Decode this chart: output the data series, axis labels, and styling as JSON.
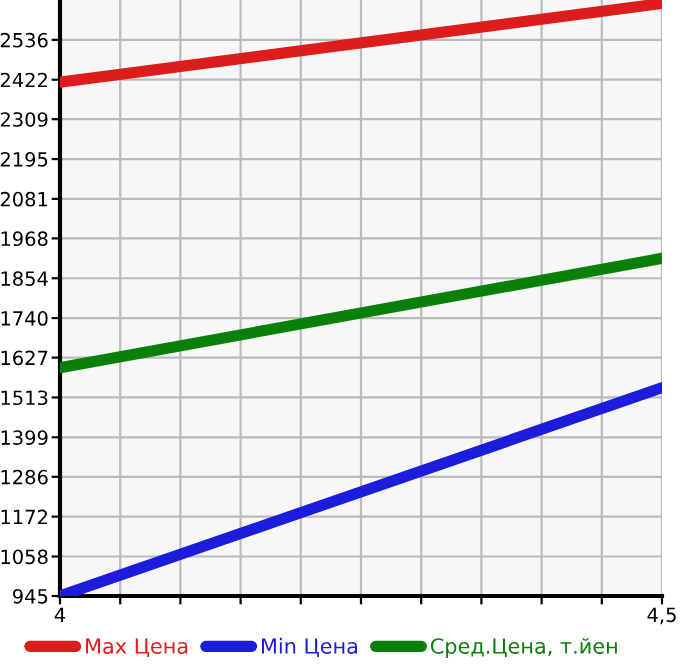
{
  "chart_data": {
    "type": "line",
    "x": [
      4,
      4.5
    ],
    "series": [
      {
        "name": "Max Цена",
        "color": "#dd1c1c",
        "values": [
          2415,
          2640
        ]
      },
      {
        "name": "Min Цена",
        "color": "#1c1cdd",
        "values": [
          945,
          1541
        ]
      },
      {
        "name": "Сред.Цена, т.йен",
        "color": "#0a800a",
        "values": [
          1598,
          1911
        ]
      }
    ],
    "xlim": [
      4,
      4.5
    ],
    "xticks": [
      4,
      {
        "value": 4.05,
        "label": null
      },
      {
        "value": 4.1,
        "label": null
      },
      {
        "value": 4.15,
        "label": null
      },
      {
        "value": 4.2,
        "label": null
      },
      {
        "value": 4.25,
        "label": null
      },
      {
        "value": 4.3,
        "label": null
      },
      {
        "value": 4.35,
        "label": null
      },
      {
        "value": 4.4,
        "label": null
      },
      {
        "value": 4.45,
        "label": null
      },
      {
        "value": 4.5,
        "label": "4,5"
      }
    ],
    "ylim": [
      945,
      2650
    ],
    "yticks": [
      945,
      1058,
      1172,
      1286,
      1399,
      1513,
      1627,
      1740,
      1854,
      1968,
      2081,
      2195,
      2309,
      2422,
      2536
    ],
    "grid": true,
    "legend": "bottom",
    "marker": "none",
    "line_style": "solid"
  }
}
